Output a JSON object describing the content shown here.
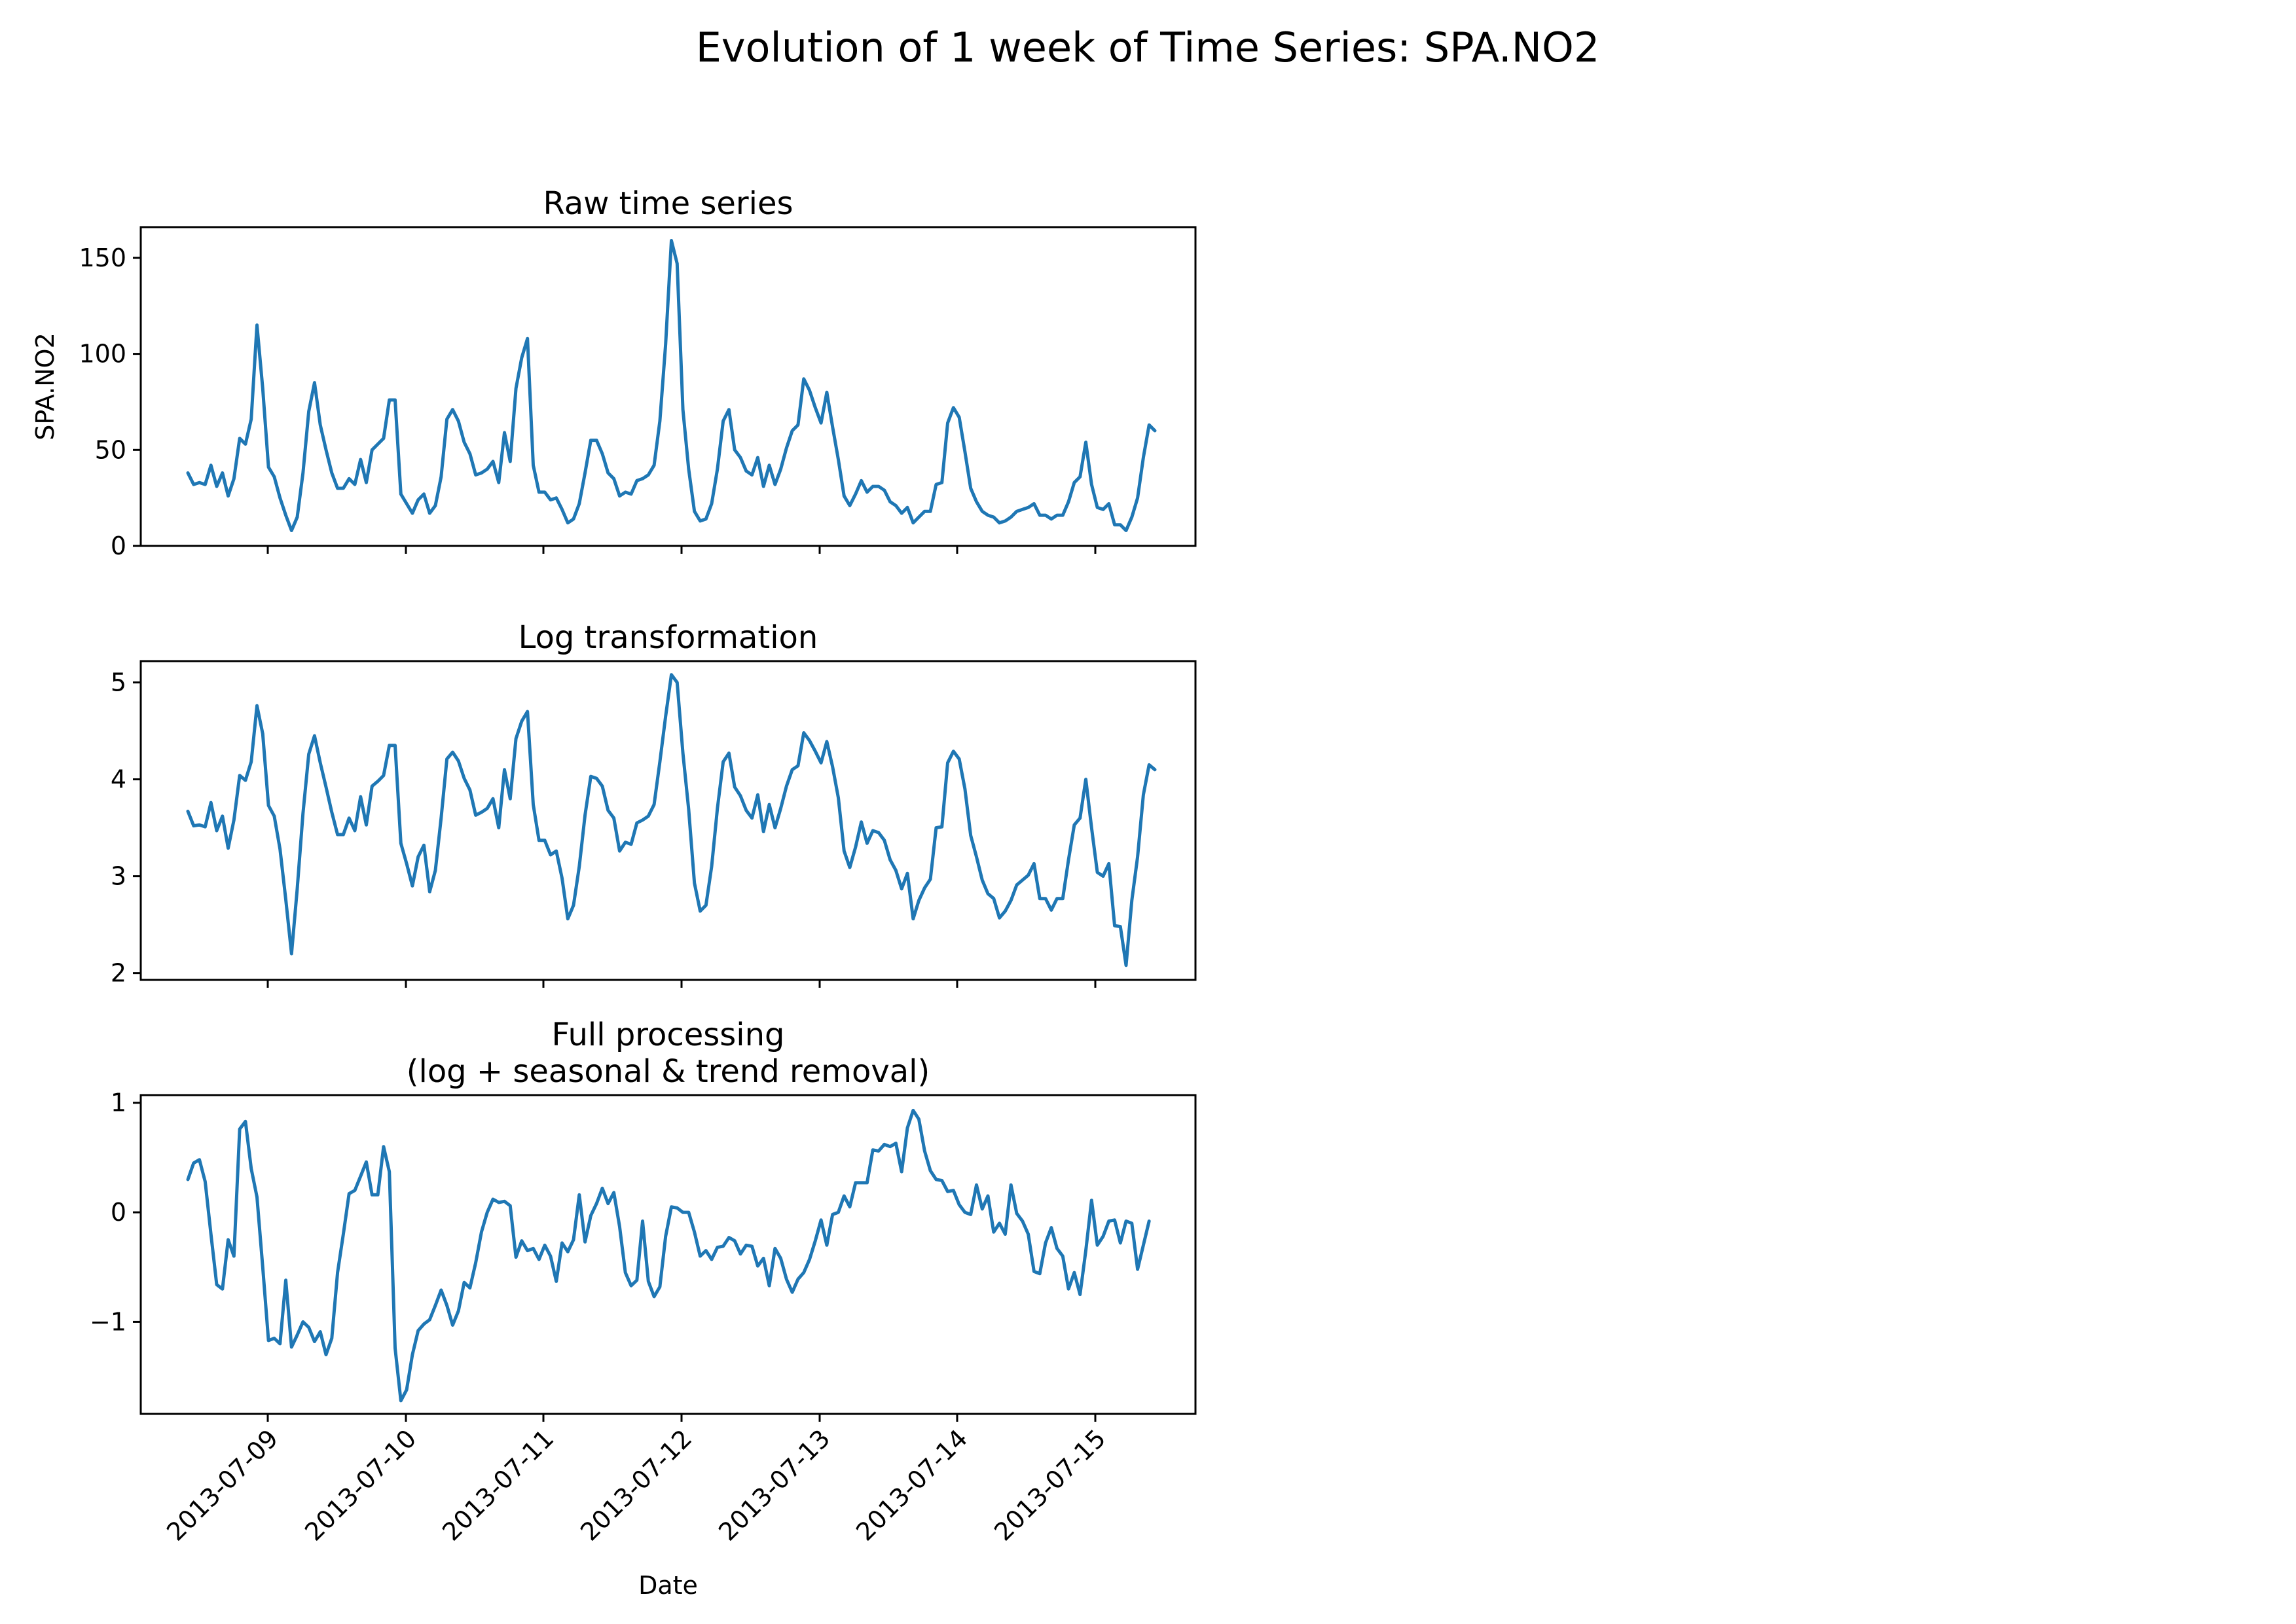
{
  "figure": {
    "title": "Evolution of 1 week of Time Series: SPA.NO2",
    "line_color": "#1f77b4"
  },
  "chart_data": [
    {
      "type": "line",
      "title": "Raw time series",
      "xlabel": "",
      "ylabel": "SPA.NO2",
      "ylim": [
        0,
        166
      ],
      "yticks": [
        0,
        50,
        100,
        150
      ],
      "ytick_labels": [
        "0",
        "50",
        "100",
        "150"
      ],
      "xticks": [
        "2013-07-09",
        "2013-07-10",
        "2013-07-11",
        "2013-07-12",
        "2013-07-13",
        "2013-07-14",
        "2013-07-15"
      ],
      "xtick_labels": [],
      "x_start": "2013-07-08 10:00",
      "x_step_hours": 1,
      "series": [
        {
          "values": [
            38,
            32,
            33,
            32,
            42,
            31,
            38,
            26,
            35,
            56,
            53,
            66,
            115,
            82,
            41,
            36,
            25,
            16,
            8,
            15,
            38,
            70,
            85,
            63,
            50,
            38,
            30,
            30,
            35,
            32,
            45,
            33,
            50,
            53,
            56,
            76,
            76,
            27,
            22,
            17,
            24,
            27,
            17,
            21,
            36,
            66,
            71,
            65,
            54,
            48,
            37,
            38,
            40,
            44,
            33,
            59,
            44,
            82,
            98,
            108,
            42,
            28,
            28,
            24,
            25,
            19,
            12,
            14,
            22,
            38,
            55,
            55,
            48,
            38,
            35,
            26,
            28,
            27,
            34,
            35,
            37,
            42,
            65,
            105,
            159,
            147,
            71,
            40,
            18,
            13,
            14,
            22,
            40,
            65,
            71,
            50,
            46,
            39,
            37,
            46,
            31,
            42,
            32,
            40,
            51,
            60,
            63,
            87,
            81,
            72,
            64,
            80,
            62,
            45,
            26,
            21,
            27,
            34,
            28,
            31,
            31,
            29,
            23,
            21,
            17,
            20,
            12,
            15,
            18,
            18,
            32,
            33,
            64,
            72,
            67,
            49,
            30,
            23,
            18,
            16,
            15,
            12,
            13,
            15,
            18,
            19,
            20,
            22,
            16,
            16,
            14,
            16,
            16,
            23,
            33,
            36,
            54,
            32,
            20,
            19,
            22,
            11,
            11,
            8,
            15,
            25,
            46,
            63,
            60
          ]
        }
      ]
    },
    {
      "type": "line",
      "title": "Log transformation",
      "xlabel": "",
      "ylabel": "",
      "ylim": [
        1.93,
        5.22
      ],
      "yticks": [
        2,
        3,
        4,
        5
      ],
      "ytick_labels": [
        "2",
        "3",
        "4",
        "5"
      ],
      "xticks": [
        "2013-07-09",
        "2013-07-10",
        "2013-07-11",
        "2013-07-12",
        "2013-07-13",
        "2013-07-14",
        "2013-07-15"
      ],
      "xtick_labels": [],
      "x_start": "2013-07-08 10:00",
      "x_step_hours": 1,
      "series": [
        {
          "values": [
            3.67,
            3.52,
            3.53,
            3.51,
            3.76,
            3.47,
            3.62,
            3.29,
            3.58,
            4.04,
            3.99,
            4.18,
            4.76,
            4.47,
            3.73,
            3.62,
            3.28,
            2.76,
            2.2,
            2.87,
            3.65,
            4.26,
            4.45,
            4.17,
            3.92,
            3.66,
            3.43,
            3.43,
            3.6,
            3.47,
            3.82,
            3.53,
            3.93,
            3.98,
            4.04,
            4.35,
            4.35,
            3.34,
            3.13,
            2.9,
            3.2,
            3.32,
            2.84,
            3.06,
            3.6,
            4.21,
            4.28,
            4.19,
            4.01,
            3.89,
            3.63,
            3.66,
            3.7,
            3.8,
            3.5,
            4.1,
            3.8,
            4.42,
            4.6,
            4.7,
            3.74,
            3.37,
            3.37,
            3.22,
            3.26,
            2.98,
            2.56,
            2.7,
            3.1,
            3.63,
            4.03,
            4.01,
            3.93,
            3.68,
            3.6,
            3.26,
            3.35,
            3.33,
            3.55,
            3.58,
            3.62,
            3.74,
            4.18,
            4.65,
            5.08,
            5.0,
            4.27,
            3.69,
            2.93,
            2.64,
            2.7,
            3.1,
            3.7,
            4.18,
            4.27,
            3.92,
            3.83,
            3.68,
            3.6,
            3.84,
            3.46,
            3.74,
            3.5,
            3.7,
            3.93,
            4.1,
            4.14,
            4.48,
            4.4,
            4.29,
            4.17,
            4.39,
            4.13,
            3.81,
            3.26,
            3.09,
            3.3,
            3.56,
            3.34,
            3.47,
            3.45,
            3.37,
            3.17,
            3.06,
            2.87,
            3.03,
            2.56,
            2.75,
            2.88,
            2.97,
            3.5,
            3.51,
            4.17,
            4.29,
            4.21,
            3.9,
            3.42,
            3.2,
            2.96,
            2.82,
            2.77,
            2.57,
            2.64,
            2.75,
            2.91,
            2.96,
            3.01,
            3.13,
            2.77,
            2.77,
            2.65,
            2.77,
            2.77,
            3.17,
            3.53,
            3.6,
            4.0,
            3.5,
            3.04,
            3.0,
            3.13,
            2.49,
            2.48,
            2.08,
            2.75,
            3.2,
            3.84,
            4.15,
            4.1
          ]
        }
      ]
    },
    {
      "type": "line",
      "title": "Full processing\n(log + seasonal & trend removal)",
      "xlabel": "Date",
      "ylabel": "",
      "ylim": [
        -1.84,
        1.07
      ],
      "yticks": [
        -1,
        0,
        1
      ],
      "ytick_labels": [
        "−1",
        "0",
        "1"
      ],
      "xticks": [
        "2013-07-09",
        "2013-07-10",
        "2013-07-11",
        "2013-07-12",
        "2013-07-13",
        "2013-07-14",
        "2013-07-15"
      ],
      "xtick_labels": [
        "2013-07-09",
        "2013-07-10",
        "2013-07-11",
        "2013-07-12",
        "2013-07-13",
        "2013-07-14",
        "2013-07-15"
      ],
      "x_start": "2013-07-08 10:00",
      "x_step_hours": 1,
      "series": [
        {
          "values": [
            0.3,
            0.45,
            0.48,
            0.28,
            -0.2,
            -0.66,
            -0.7,
            -0.25,
            -0.4,
            0.76,
            0.83,
            0.4,
            0.14,
            -0.5,
            -1.17,
            -1.15,
            -1.2,
            -0.62,
            -1.23,
            -1.12,
            -1.0,
            -1.05,
            -1.18,
            -1.09,
            -1.3,
            -1.15,
            -0.55,
            -0.2,
            0.17,
            0.2,
            0.33,
            0.46,
            0.16,
            0.16,
            0.6,
            0.37,
            -1.24,
            -1.72,
            -1.62,
            -1.3,
            -1.08,
            -1.02,
            -0.98,
            -0.85,
            -0.71,
            -0.85,
            -1.03,
            -0.9,
            -0.64,
            -0.69,
            -0.46,
            -0.18,
            0.0,
            0.12,
            0.09,
            0.1,
            0.06,
            -0.41,
            -0.26,
            -0.35,
            -0.33,
            -0.43,
            -0.3,
            -0.4,
            -0.63,
            -0.28,
            -0.36,
            -0.25,
            0.16,
            -0.27,
            -0.03,
            0.08,
            0.22,
            0.08,
            0.18,
            -0.13,
            -0.55,
            -0.67,
            -0.62,
            -0.08,
            -0.63,
            -0.77,
            -0.68,
            -0.22,
            0.05,
            0.04,
            0.0,
            0.0,
            -0.18,
            -0.4,
            -0.35,
            -0.43,
            -0.32,
            -0.31,
            -0.23,
            -0.26,
            -0.38,
            -0.3,
            -0.31,
            -0.49,
            -0.42,
            -0.67,
            -0.33,
            -0.42,
            -0.61,
            -0.73,
            -0.61,
            -0.55,
            -0.43,
            -0.26,
            -0.07,
            -0.3,
            -0.02,
            0.0,
            0.15,
            0.05,
            0.27,
            0.27,
            0.27,
            0.57,
            0.56,
            0.62,
            0.6,
            0.63,
            0.37,
            0.77,
            0.93,
            0.85,
            0.56,
            0.38,
            0.3,
            0.29,
            0.19,
            0.2,
            0.07,
            0.0,
            -0.02,
            0.25,
            0.03,
            0.15,
            -0.18,
            -0.1,
            -0.2,
            0.25,
            -0.01,
            -0.08,
            -0.2,
            -0.54,
            -0.56,
            -0.28,
            -0.14,
            -0.33,
            -0.4,
            -0.7,
            -0.55,
            -0.75,
            -0.35,
            0.11,
            -0.3,
            -0.22,
            -0.08,
            -0.07,
            -0.28,
            -0.08,
            -0.1,
            -0.52,
            -0.3,
            -0.08
          ]
        }
      ]
    }
  ]
}
